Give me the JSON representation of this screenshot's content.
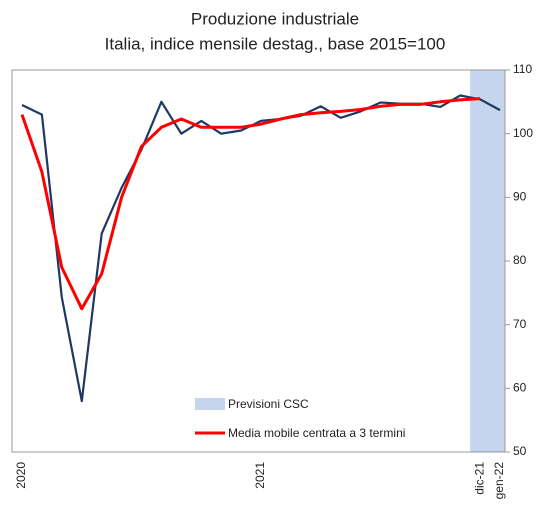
{
  "chart_data": {
    "type": "line",
    "title": "Produzione industriale",
    "subtitle": "Italia, indice mensile destag., base 2015=100",
    "categories": [
      "2020",
      null,
      null,
      null,
      null,
      null,
      null,
      null,
      null,
      null,
      null,
      null,
      "2021",
      null,
      null,
      null,
      null,
      null,
      null,
      null,
      null,
      null,
      null,
      "dic-21",
      "gen-22"
    ],
    "series": [
      {
        "name": "Produzione industriale",
        "color": "#1f3864",
        "values": [
          104.5,
          103,
          74.3,
          58,
          84.3,
          91.5,
          97.5,
          105,
          100,
          102,
          100,
          100.5,
          102,
          102.3,
          102.8,
          104.3,
          102.5,
          103.5,
          104.9,
          104.7,
          104.7,
          104.2,
          106,
          105.4,
          103.7
        ]
      },
      {
        "name": "Media mobile centrata a 3 termini",
        "color": "#ff0000",
        "values": [
          103,
          94,
          79,
          72.5,
          78,
          90,
          98,
          101,
          102.3,
          101,
          101,
          101,
          101.5,
          102.3,
          103,
          103.3,
          103.5,
          103.8,
          104.3,
          104.6,
          104.6,
          105,
          105.3,
          105.5,
          null
        ]
      }
    ],
    "shade": {
      "name": "Previsioni CSC",
      "color": "#c5d5ee",
      "categories": [
        "dic-21",
        "gen-22"
      ]
    },
    "ylim": [
      50,
      110
    ],
    "yticks": [
      50,
      60,
      70,
      80,
      90,
      100,
      110
    ],
    "y_axis_side": "right",
    "legend": "lower center"
  }
}
